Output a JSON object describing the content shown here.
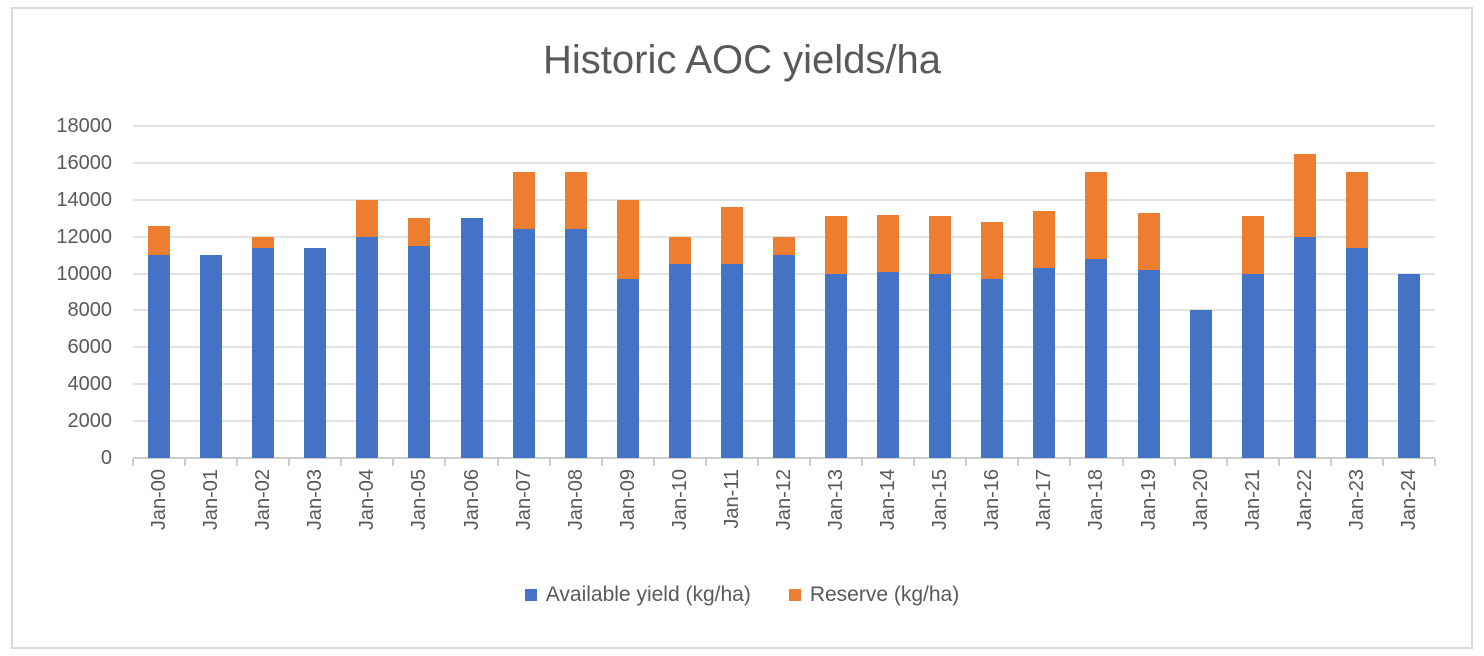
{
  "title": "Historic AOC yields/ha",
  "legend": {
    "items": [
      {
        "label": "Available yield (kg/ha)",
        "color": "#4472C4"
      },
      {
        "label": "Reserve (kg/ha)",
        "color": "#ED7D31"
      }
    ]
  },
  "colors": {
    "available": "#4472C4",
    "reserve": "#ED7D31",
    "gridline": "#E2E2E2",
    "axis": "#CDCDCD",
    "text": "#595959",
    "frame_border": "#D9D9D9",
    "background": "#FFFFFF"
  },
  "chart_data": {
    "type": "bar",
    "stacked": true,
    "title": "Historic AOC yields/ha",
    "categories": [
      "Jan-00",
      "Jan-01",
      "Jan-02",
      "Jan-03",
      "Jan-04",
      "Jan-05",
      "Jan-06",
      "Jan-07",
      "Jan-08",
      "Jan-09",
      "Jan-10",
      "Jan-11",
      "Jan-12",
      "Jan-13",
      "Jan-14",
      "Jan-15",
      "Jan-16",
      "Jan-17",
      "Jan-18",
      "Jan-19",
      "Jan-20",
      "Jan-21",
      "Jan-22",
      "Jan-23",
      "Jan-24"
    ],
    "series": [
      {
        "name": "Available yield (kg/ha)",
        "color": "#4472C4",
        "values": [
          11000,
          11000,
          11400,
          11400,
          12000,
          11500,
          13000,
          12400,
          12400,
          9700,
          10500,
          10500,
          11000,
          10000,
          10100,
          10000,
          9700,
          10300,
          10800,
          10200,
          8000,
          10000,
          12000,
          11400,
          10000
        ]
      },
      {
        "name": "Reserve (kg/ha)",
        "color": "#ED7D31",
        "values": [
          1600,
          0,
          600,
          0,
          2000,
          1500,
          0,
          3100,
          3100,
          4300,
          1500,
          3100,
          1000,
          3100,
          3100,
          3100,
          3100,
          3100,
          4700,
          3100,
          0,
          3100,
          4500,
          4100,
          0
        ]
      }
    ],
    "stack_totals": [
      12600,
      11000,
      12000,
      11400,
      14000,
      13000,
      13000,
      15500,
      15500,
      14000,
      12000,
      13600,
      12000,
      13100,
      13200,
      13100,
      12800,
      13400,
      15500,
      13300,
      8000,
      13100,
      16500,
      15500,
      10000
    ],
    "xlabel": "",
    "ylabel": "",
    "ylim": [
      0,
      18000
    ],
    "ytick_step": 2000,
    "ytick_labels": [
      "0",
      "2000",
      "4000",
      "6000",
      "8000",
      "10000",
      "12000",
      "14000",
      "16000",
      "18000"
    ],
    "grid": true,
    "legend_position": "bottom",
    "x_label_rotation": 90
  }
}
